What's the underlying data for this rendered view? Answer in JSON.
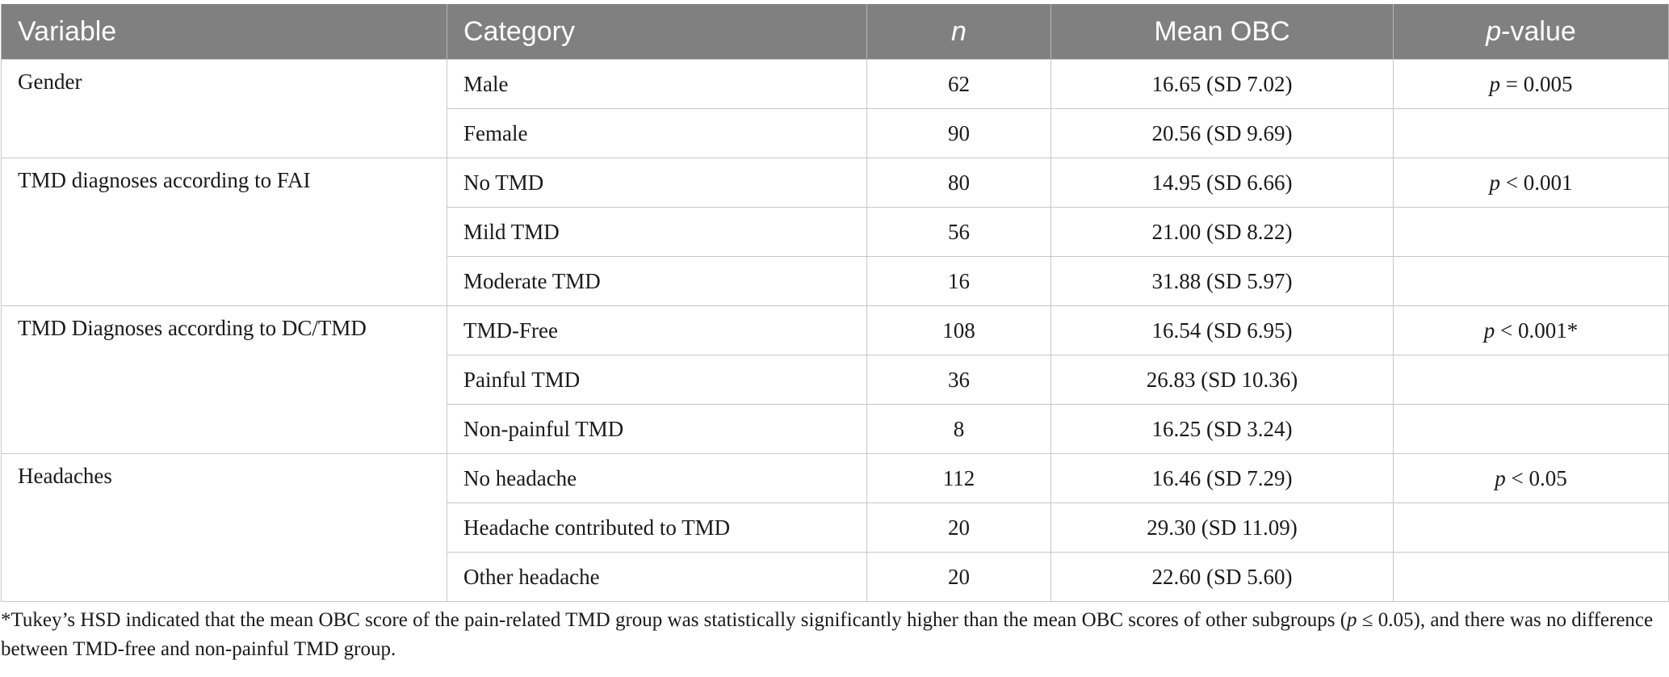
{
  "table": {
    "headers": {
      "variable": "Variable",
      "category": "Category",
      "n": "n",
      "mean": "Mean OBC",
      "p_italic": "p",
      "p_rest": "-value"
    },
    "groups": [
      {
        "variable": "Gender",
        "rows": [
          {
            "category": "Male",
            "n": "62",
            "mean": "16.65 (SD 7.02)",
            "p_symbol": "p",
            "p_rest": " = 0.005"
          },
          {
            "category": "Female",
            "n": "90",
            "mean": "20.56 (SD 9.69)",
            "p_symbol": "",
            "p_rest": ""
          }
        ]
      },
      {
        "variable": "TMD diagnoses according to FAI",
        "rows": [
          {
            "category": "No TMD",
            "n": "80",
            "mean": "14.95 (SD 6.66)",
            "p_symbol": "p",
            "p_rest": " < 0.001"
          },
          {
            "category": "Mild TMD",
            "n": "56",
            "mean": "21.00 (SD 8.22)",
            "p_symbol": "",
            "p_rest": ""
          },
          {
            "category": "Moderate TMD",
            "n": "16",
            "mean": "31.88 (SD 5.97)",
            "p_symbol": "",
            "p_rest": ""
          }
        ]
      },
      {
        "variable": "TMD Diagnoses according to DC/TMD",
        "rows": [
          {
            "category": "TMD-Free",
            "n": "108",
            "mean": "16.54 (SD 6.95)",
            "p_symbol": "p",
            "p_rest": " < 0.001*"
          },
          {
            "category": "Painful TMD",
            "n": "36",
            "mean": "26.83 (SD 10.36)",
            "p_symbol": "",
            "p_rest": ""
          },
          {
            "category": "Non-painful TMD",
            "n": "8",
            "mean": "16.25 (SD 3.24)",
            "p_symbol": "",
            "p_rest": ""
          }
        ]
      },
      {
        "variable": "Headaches",
        "rows": [
          {
            "category": "No headache",
            "n": "112",
            "mean": "16.46 (SD 7.29)",
            "p_symbol": "p",
            "p_rest": " < 0.05"
          },
          {
            "category": "Headache contributed to TMD",
            "n": "20",
            "mean": "29.30 (SD 11.09)",
            "p_symbol": "",
            "p_rest": ""
          },
          {
            "category": "Other headache",
            "n": "20",
            "mean": "22.60 (SD 5.60)",
            "p_symbol": "",
            "p_rest": ""
          }
        ]
      }
    ]
  },
  "footnote": {
    "part1": "*Tukey’s HSD indicated that the mean OBC score of the pain-related TMD group was statistically significantly higher than the mean OBC scores of other subgroups (",
    "p_symbol": "p",
    "part2": " ≤ 0.05), and there was no difference between TMD-free and non-painful TMD group."
  },
  "colors": {
    "header_bg": "#808080",
    "header_text": "#ffffff",
    "border": "#c8c8c8",
    "body_text": "#1a1a1a"
  }
}
